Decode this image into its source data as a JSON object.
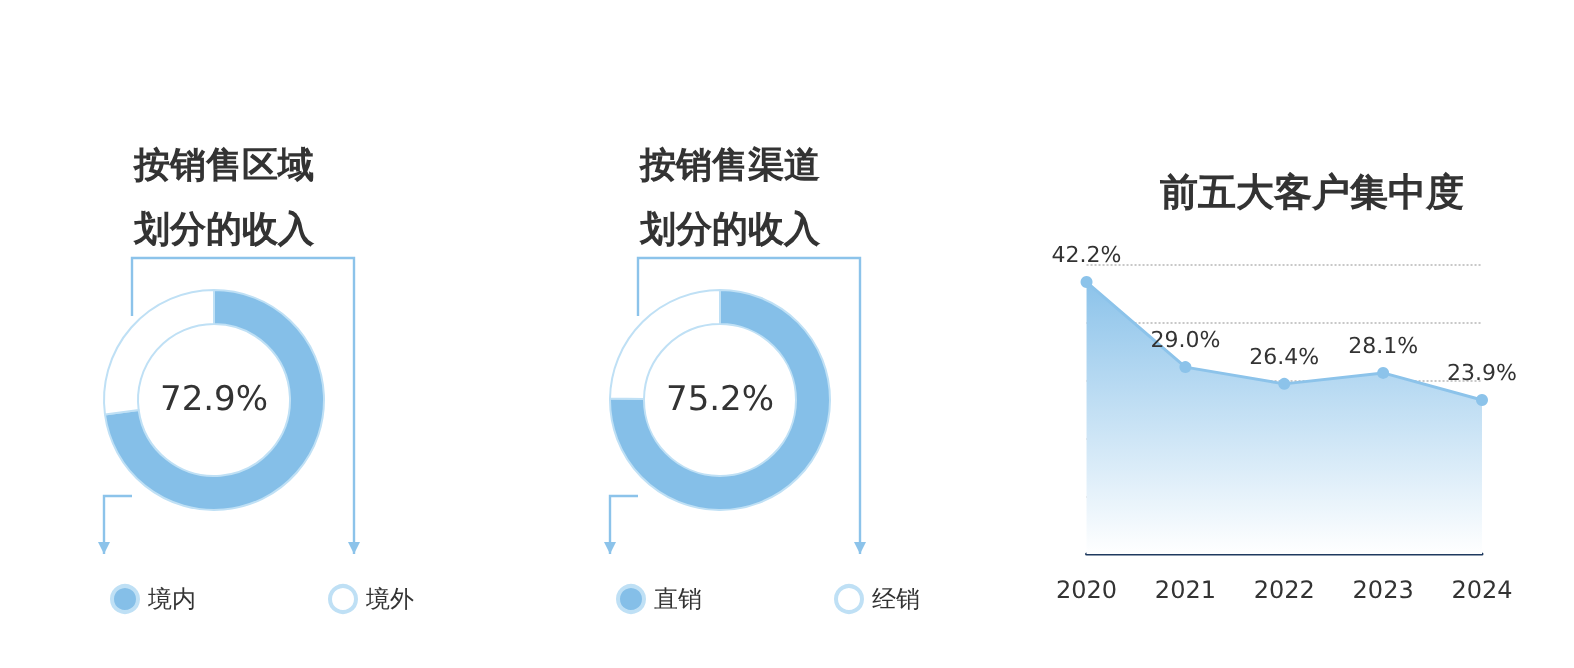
{
  "chart_data": [
    {
      "type": "donut",
      "title": "按销售区域划分的收入",
      "categories": [
        "境内",
        "境外"
      ],
      "values": [
        72.9,
        27.1
      ],
      "colors": [
        "#85bfe8",
        "#ffffff"
      ],
      "annotations": [
        "72.9%"
      ],
      "legend": "bottom"
    },
    {
      "type": "donut",
      "title": "按销售渠道划分的收入",
      "categories": [
        "直销",
        "经销"
      ],
      "values": [
        75.2,
        24.8
      ],
      "colors": [
        "#85bfe8",
        "#ffffff"
      ],
      "annotations": [
        "75.2%"
      ],
      "legend": "bottom"
    },
    {
      "type": "area",
      "title": "前五大客户集中度",
      "categories": [
        "2020",
        "2021",
        "2022",
        "2023",
        "2024"
      ],
      "values": [
        42.2,
        29.0,
        26.4,
        28.1,
        23.9
      ],
      "color": "#8cc3ea",
      "value_labels": [
        "42.2%",
        "29.0%",
        "26.4%",
        "28.1%",
        "23.9%"
      ],
      "ylim": [
        0,
        45
      ],
      "yticks": [
        {
          "value": 9,
          "label": null
        },
        {
          "value": 18,
          "label": null
        },
        {
          "value": 27,
          "label": null
        },
        {
          "value": 36,
          "label": null
        },
        {
          "value": 45,
          "label": null
        }
      ],
      "grid": "y",
      "marker": "circle",
      "tick_labels": "x"
    }
  ]
}
